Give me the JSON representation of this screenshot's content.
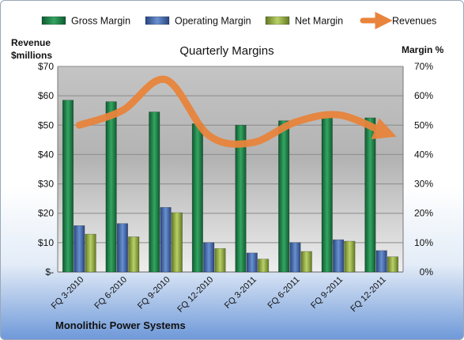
{
  "chart_data": {
    "type": "bar",
    "title": "Quarterly Margins",
    "categories": [
      "FQ 3-2010",
      "FQ 6-2010",
      "FQ 9-2010",
      "FQ 12-2010",
      "FQ 3-2011",
      "FQ 6-2011",
      "FQ 9-2011",
      "FQ 12-2011"
    ],
    "left_axis": {
      "label_line1": "Revenue",
      "label_line2": "$millions",
      "ticks": [
        "$-",
        "$10",
        "$20",
        "$30",
        "$40",
        "$50",
        "$60",
        "$70"
      ],
      "range": [
        0,
        70
      ]
    },
    "right_axis": {
      "label": "Margin %",
      "ticks": [
        "0%",
        "10%",
        "20%",
        "30%",
        "40%",
        "50%",
        "60%",
        "70%"
      ],
      "range": [
        0,
        70
      ]
    },
    "series": [
      {
        "name": "Gross Margin",
        "type": "bar",
        "axis": "right",
        "color": "#1f7a45",
        "values": [
          58.5,
          58,
          54.5,
          50.5,
          50,
          51.5,
          52.5,
          52.5
        ]
      },
      {
        "name": "Operating Margin",
        "type": "bar",
        "axis": "right",
        "color": "#3d64a8",
        "values": [
          15.8,
          16.5,
          22,
          10,
          6.5,
          10,
          11,
          7.3
        ]
      },
      {
        "name": "Net Margin",
        "type": "bar",
        "axis": "right",
        "color": "#8faa3c",
        "values": [
          12.9,
          12,
          20.2,
          8,
          4.4,
          7,
          10.5,
          5.2
        ]
      },
      {
        "name": "Revenues",
        "type": "line",
        "axis": "left",
        "color": "#e8843c",
        "values": [
          50,
          55,
          65.5,
          46.5,
          44,
          51,
          53.5,
          48
        ]
      }
    ],
    "legend_position": "top",
    "grid": true
  },
  "footer": {
    "company": "Monolithic Power Systems"
  }
}
